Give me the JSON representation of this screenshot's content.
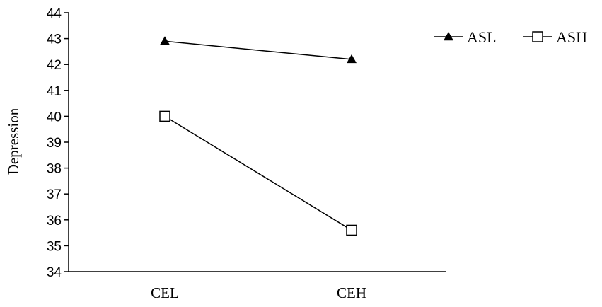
{
  "chart_data": {
    "type": "line",
    "title": "",
    "xlabel": "",
    "ylabel": "Depression",
    "categories": [
      "CEL",
      "CEH"
    ],
    "ylim": [
      34,
      44
    ],
    "yticks": [
      34,
      35,
      36,
      37,
      38,
      39,
      40,
      41,
      42,
      43,
      44
    ],
    "grid": false,
    "legend_position": "top-right",
    "series": [
      {
        "name": "ASL",
        "marker": "filled-triangle",
        "color": "#000000",
        "values": [
          42.9,
          42.2
        ]
      },
      {
        "name": "ASH",
        "marker": "open-square",
        "color": "#000000",
        "values": [
          40.0,
          35.6
        ]
      }
    ]
  }
}
